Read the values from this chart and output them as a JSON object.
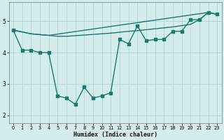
{
  "xlabel": "Humidex (Indice chaleur)",
  "background_color": "#d4ecec",
  "grid_color": "#b8d8d8",
  "line_color": "#1a7a6e",
  "xlim": [
    -0.5,
    23.5
  ],
  "ylim": [
    1.75,
    5.6
  ],
  "xticks": [
    0,
    1,
    2,
    3,
    4,
    5,
    6,
    7,
    8,
    9,
    10,
    11,
    12,
    13,
    14,
    15,
    16,
    17,
    18,
    19,
    20,
    21,
    22,
    23
  ],
  "yticks": [
    2,
    3,
    4,
    5
  ],
  "line1_x": [
    0,
    1,
    2,
    3,
    4,
    5,
    6,
    7,
    8,
    9,
    10,
    11,
    12,
    13,
    14,
    15,
    16,
    17,
    18,
    19,
    20,
    21,
    22,
    23
  ],
  "line1_y": [
    4.72,
    4.08,
    4.08,
    4.0,
    4.0,
    2.62,
    2.55,
    2.35,
    2.9,
    2.55,
    2.62,
    2.72,
    4.42,
    4.28,
    4.85,
    4.38,
    4.42,
    4.42,
    4.68,
    4.68,
    5.05,
    5.05,
    5.28,
    5.22
  ],
  "line2_x": [
    0,
    2,
    4,
    5,
    6,
    7,
    8,
    9,
    10,
    11,
    12,
    13,
    14,
    15,
    16,
    17,
    18,
    19,
    20,
    21,
    22,
    23
  ],
  "line2_y": [
    4.72,
    4.6,
    4.55,
    4.52,
    4.52,
    4.54,
    4.56,
    4.58,
    4.6,
    4.62,
    4.65,
    4.68,
    4.7,
    4.73,
    4.76,
    4.79,
    4.82,
    4.86,
    4.9,
    5.05,
    5.28,
    5.22
  ],
  "line3_x": [
    0,
    2,
    4,
    22,
    23
  ],
  "line3_y": [
    4.72,
    4.6,
    4.55,
    5.28,
    5.22
  ],
  "marker_size": 2.5,
  "line_width": 1.0
}
